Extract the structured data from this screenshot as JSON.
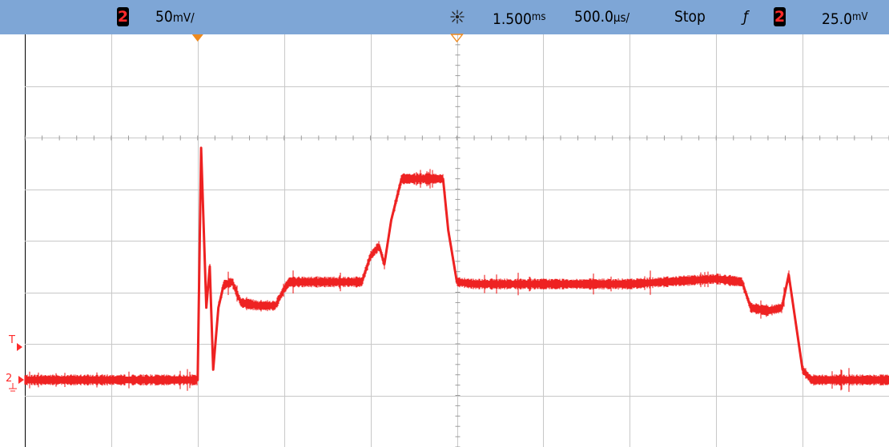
{
  "status_bar": {
    "channel_badge": "2",
    "vertical_scale": "50",
    "vertical_unit": "mV/",
    "trigger_icon": "acquisition-icon",
    "time_delay": "1.500",
    "time_delay_unit": "ms",
    "time_scale": "500.0",
    "time_scale_unit": "µs/",
    "run_state": "Stop",
    "trigger_edge_glyph": "ƒ",
    "trigger_channel": "2",
    "trigger_level": "25.0",
    "trigger_level_unit": "mV"
  },
  "markers": {
    "trigger_level_label": "T",
    "channel_ground_label": "2"
  },
  "colors": {
    "status_bar": "#7ea6d6",
    "trace": "#ee2222",
    "grid": "#c8c8c8",
    "marker_orange": "#ee8a1e"
  },
  "chart_data": {
    "type": "line",
    "title": "",
    "xlabel": "",
    "ylabel": "",
    "x_unit": "ms",
    "y_unit": "mV",
    "xlim": [
      -1.0,
      4.0
    ],
    "ylim": [
      -215,
      185
    ],
    "grid": true,
    "divisions": {
      "x": 10,
      "y": 8
    },
    "series": [
      {
        "color": "#ee2222",
        "x": [
          -1.0,
          0.0,
          0.02,
          0.05,
          0.07,
          0.09,
          0.12,
          0.15,
          0.2,
          0.25,
          0.35,
          0.45,
          0.5,
          0.53,
          0.6,
          0.7,
          0.8,
          0.95,
          1.0,
          1.05,
          1.08,
          1.12,
          1.18,
          1.25,
          1.3,
          1.42,
          1.45,
          1.5,
          1.6,
          2.0,
          2.5,
          3.0,
          3.15,
          3.2,
          3.3,
          3.38,
          3.42,
          3.5,
          3.55,
          4.0
        ],
        "y": [
          -150,
          -150,
          75,
          -80,
          -40,
          -140,
          -80,
          -58,
          -55,
          -75,
          -78,
          -78,
          -62,
          -55,
          -55,
          -55,
          -55,
          -55,
          -30,
          -20,
          -38,
          5,
          45,
          45,
          45,
          45,
          -5,
          -55,
          -57,
          -57,
          -57,
          -52,
          -55,
          -80,
          -83,
          -80,
          -48,
          -140,
          -150,
          -150
        ]
      }
    ]
  }
}
